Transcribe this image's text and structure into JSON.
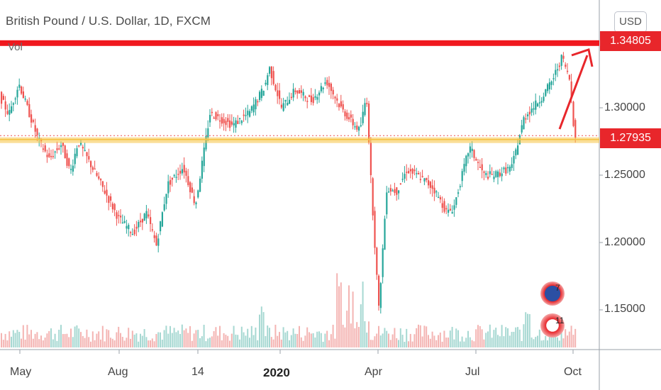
{
  "title": "British Pound / U.S. Dollar, 1D, FXCM",
  "indicator_label": "Vol",
  "currency_button": "USD",
  "colors": {
    "up": "#26a69a",
    "down": "#ef5350",
    "level": "#f0181e",
    "support": "#f5c242",
    "arrow": "#e8262b"
  },
  "chart_data": {
    "type": "candlestick",
    "title": "British Pound / U.S. Dollar, 1D, FXCM",
    "y_tick_labels": [
      "1.15000",
      "1.20000",
      "1.25000",
      "1.30000"
    ],
    "y_ticks": [
      1.15,
      1.2,
      1.25,
      1.3
    ],
    "ylim": [
      1.128,
      1.366
    ],
    "x_tick_labels": [
      "May",
      "Aug",
      "14",
      "2020",
      "Apr",
      "Jul",
      "Oct"
    ],
    "price_labels": {
      "resistance": "1.34805",
      "last": "1.27935"
    },
    "resistance_level": 1.348,
    "support_level": 1.277,
    "current_price": 1.27935,
    "series": [
      {
        "points": [
          [
            "2019-04-15",
            1.31
          ],
          [
            "2019-04-24",
            1.295
          ],
          [
            "2019-05-03",
            1.318
          ],
          [
            "2019-05-20",
            1.277
          ],
          [
            "2019-05-30",
            1.262
          ],
          [
            "2019-06-10",
            1.273
          ],
          [
            "2019-06-18",
            1.252
          ],
          [
            "2019-06-25",
            1.275
          ],
          [
            "2019-07-10",
            1.252
          ],
          [
            "2019-07-31",
            1.218
          ],
          [
            "2019-08-13",
            1.207
          ],
          [
            "2019-08-25",
            1.222
          ],
          [
            "2019-09-03",
            1.198
          ],
          [
            "2019-09-13",
            1.243
          ],
          [
            "2019-09-27",
            1.256
          ],
          [
            "2019-10-08",
            1.228
          ],
          [
            "2019-10-21",
            1.296
          ],
          [
            "2019-11-10",
            1.287
          ],
          [
            "2019-11-25",
            1.296
          ],
          [
            "2019-12-09",
            1.316
          ],
          [
            "2019-12-13",
            1.33
          ],
          [
            "2019-12-24",
            1.3
          ],
          [
            "2020-01-05",
            1.313
          ],
          [
            "2020-01-20",
            1.305
          ],
          [
            "2020-02-02",
            1.32
          ],
          [
            "2020-02-15",
            1.3
          ],
          [
            "2020-02-26",
            1.288
          ],
          [
            "2020-03-03",
            1.283
          ],
          [
            "2020-03-09",
            1.31
          ],
          [
            "2020-03-13",
            1.245
          ],
          [
            "2020-03-20",
            1.15
          ],
          [
            "2020-03-27",
            1.24
          ],
          [
            "2020-04-05",
            1.238
          ],
          [
            "2020-04-14",
            1.254
          ],
          [
            "2020-04-27",
            1.248
          ],
          [
            "2020-05-08",
            1.24
          ],
          [
            "2020-05-20",
            1.222
          ],
          [
            "2020-05-26",
            1.226
          ],
          [
            "2020-06-09",
            1.271
          ],
          [
            "2020-06-22",
            1.25
          ],
          [
            "2020-07-02",
            1.25
          ],
          [
            "2020-07-17",
            1.256
          ],
          [
            "2020-07-28",
            1.293
          ],
          [
            "2020-08-12",
            1.307
          ],
          [
            "2020-08-22",
            1.32
          ],
          [
            "2020-08-31",
            1.338
          ],
          [
            "2020-09-07",
            1.32
          ],
          [
            "2020-09-11",
            1.28
          ]
        ]
      }
    ],
    "volume": {
      "baseline": 450,
      "typical_height": 25,
      "spike_height": 95
    }
  },
  "flags": [
    {
      "country": "UK",
      "count": "7"
    },
    {
      "country": "US",
      "count": "11"
    }
  ]
}
